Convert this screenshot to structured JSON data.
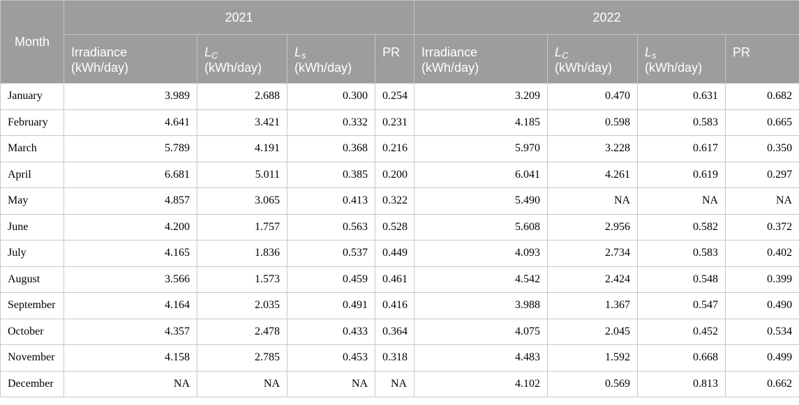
{
  "header": {
    "month_label": "Month",
    "years": [
      "2021",
      "2022"
    ],
    "columns": {
      "irradiance_name": "Irradiance",
      "irradiance_unit": "(kWh/day)",
      "lc_symbol": "L",
      "lc_sub": "C",
      "lc_unit": "(kWh/day)",
      "ls_symbol": "L",
      "ls_sub": "s",
      "ls_unit": "(kWh/day)",
      "pr_label": "PR"
    }
  },
  "rows": [
    {
      "month": "January",
      "y2021": [
        "3.989",
        "2.688",
        "0.300",
        "0.254"
      ],
      "y2022": [
        "3.209",
        "0.470",
        "0.631",
        "0.682"
      ]
    },
    {
      "month": "February",
      "y2021": [
        "4.641",
        "3.421",
        "0.332",
        "0.231"
      ],
      "y2022": [
        "4.185",
        "0.598",
        "0.583",
        "0.665"
      ]
    },
    {
      "month": "March",
      "y2021": [
        "5.789",
        "4.191",
        "0.368",
        "0.216"
      ],
      "y2022": [
        "5.970",
        "3.228",
        "0.617",
        "0.350"
      ]
    },
    {
      "month": "April",
      "y2021": [
        "6.681",
        "5.011",
        "0.385",
        "0.200"
      ],
      "y2022": [
        "6.041",
        "4.261",
        "0.619",
        "0.297"
      ]
    },
    {
      "month": "May",
      "y2021": [
        "4.857",
        "3.065",
        "0.413",
        "0.322"
      ],
      "y2022": [
        "5.490",
        "NA",
        "NA",
        "NA"
      ]
    },
    {
      "month": "June",
      "y2021": [
        "4.200",
        "1.757",
        "0.563",
        "0.528"
      ],
      "y2022": [
        "5.608",
        "2.956",
        "0.582",
        "0.372"
      ]
    },
    {
      "month": "July",
      "y2021": [
        "4.165",
        "1.836",
        "0.537",
        "0.449"
      ],
      "y2022": [
        "4.093",
        "2.734",
        "0.583",
        "0.402"
      ]
    },
    {
      "month": "August",
      "y2021": [
        "3.566",
        "1.573",
        "0.459",
        "0.461"
      ],
      "y2022": [
        "4.542",
        "2.424",
        "0.548",
        "0.399"
      ]
    },
    {
      "month": "September",
      "y2021": [
        "4.164",
        "2.035",
        "0.491",
        "0.416"
      ],
      "y2022": [
        "3.988",
        "1.367",
        "0.547",
        "0.490"
      ]
    },
    {
      "month": "October",
      "y2021": [
        "4.357",
        "2.478",
        "0.433",
        "0.364"
      ],
      "y2022": [
        "4.075",
        "2.045",
        "0.452",
        "0.534"
      ]
    },
    {
      "month": "November",
      "y2021": [
        "4.158",
        "2.785",
        "0.453",
        "0.318"
      ],
      "y2022": [
        "4.483",
        "1.592",
        "0.668",
        "0.499"
      ]
    },
    {
      "month": "December",
      "y2021": [
        "NA",
        "NA",
        "NA",
        "NA"
      ],
      "y2022": [
        "4.102",
        "0.569",
        "0.813",
        "0.662"
      ]
    }
  ]
}
